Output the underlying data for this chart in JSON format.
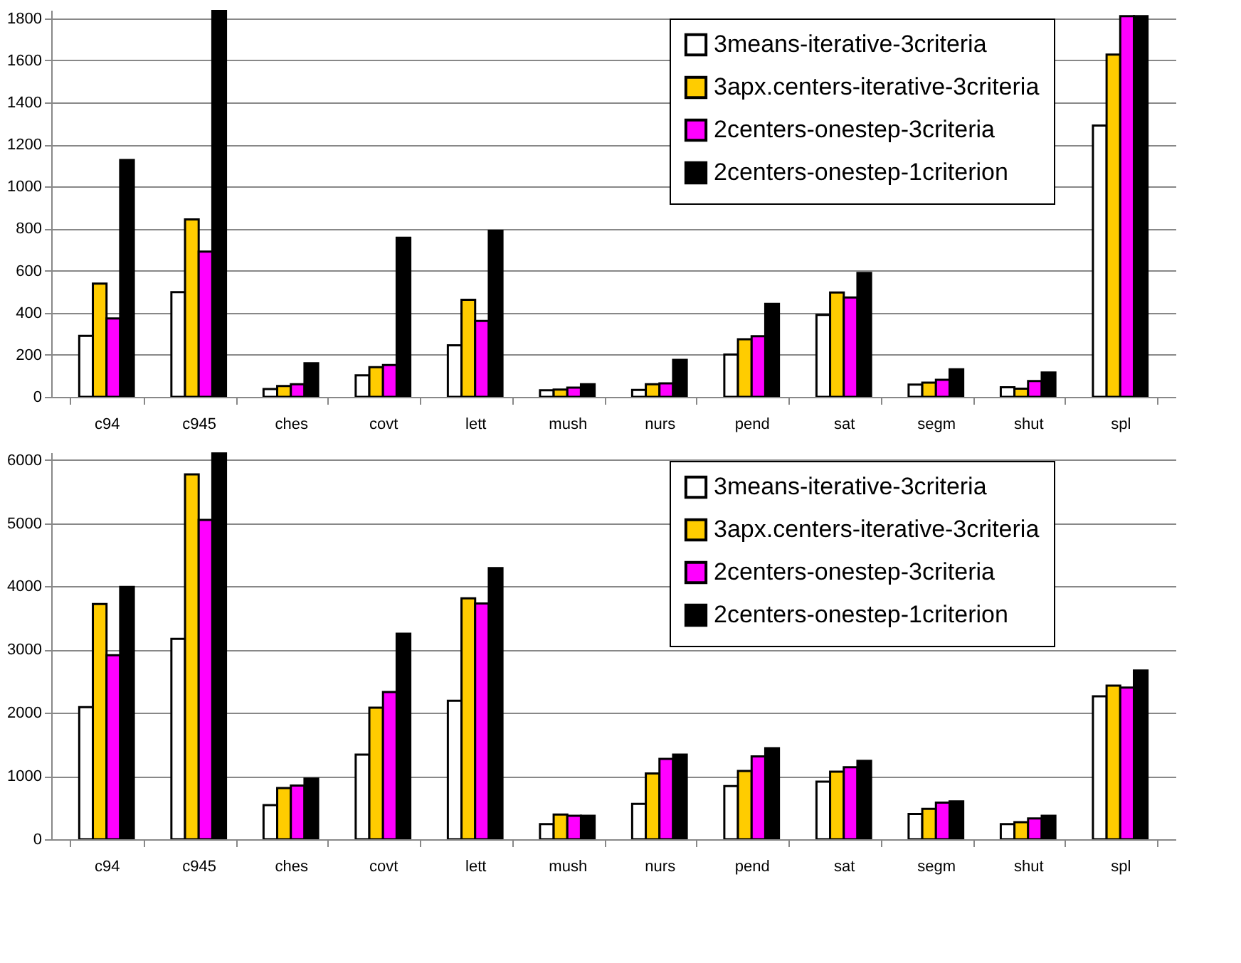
{
  "chart_data": [
    {
      "type": "bar",
      "categories": [
        "c94",
        "c945",
        "ches",
        "covt",
        "lett",
        "mush",
        "nurs",
        "pend",
        "sat",
        "segm",
        "shut",
        "spl"
      ],
      "ylim": [
        0,
        1840
      ],
      "yticks": [
        0,
        200,
        400,
        600,
        800,
        1000,
        1200,
        1400,
        1600,
        1800
      ],
      "grid": "y",
      "legend": "top right",
      "series": [
        {
          "name": "3means-iterative-3criteria",
          "color": "#ffffff",
          "values": [
            290,
            498,
            37,
            102,
            245,
            31,
            33,
            201,
            390,
            58,
            46,
            1290
          ]
        },
        {
          "name": "3apx.centers-iterative-3criteria",
          "color": "#ffcc00",
          "values": [
            539,
            844,
            52,
            141,
            462,
            35,
            60,
            274,
            496,
            68,
            39,
            1628
          ]
        },
        {
          "name": "2centers-onestep-3criteria",
          "color": "#ff00ff",
          "values": [
            373,
            691,
            60,
            151,
            361,
            44,
            64,
            288,
            473,
            81,
            75,
            1810
          ]
        },
        {
          "name": "2centers-onestep-1criterion",
          "color": "#000000",
          "values": [
            1126,
            1835,
            160,
            757,
            790,
            60,
            176,
            442,
            589,
            131,
            116,
            1810
          ]
        }
      ]
    },
    {
      "type": "bar",
      "categories": [
        "c94",
        "c945",
        "ches",
        "covt",
        "lett",
        "mush",
        "nurs",
        "pend",
        "sat",
        "segm",
        "shut",
        "spl"
      ],
      "ylim": [
        0,
        6120
      ],
      "yticks": [
        0,
        1000,
        2000,
        3000,
        4000,
        5000,
        6000
      ],
      "grid": "y",
      "legend": "top right",
      "series": [
        {
          "name": "3means-iterative-3criteria",
          "color": "#ffffff",
          "values": [
            2090,
            3170,
            540,
            1340,
            2190,
            240,
            560,
            840,
            910,
            400,
            240,
            2260
          ]
        },
        {
          "name": "3apx.centers-iterative-3criteria",
          "color": "#ffcc00",
          "values": [
            3720,
            5770,
            810,
            2080,
            3810,
            390,
            1040,
            1080,
            1070,
            480,
            270,
            2430
          ]
        },
        {
          "name": "2centers-onestep-3criteria",
          "color": "#ff00ff",
          "values": [
            2910,
            5050,
            850,
            2330,
            3730,
            370,
            1270,
            1310,
            1140,
            580,
            330,
            2400
          ]
        },
        {
          "name": "2centers-onestep-1criterion",
          "color": "#000000",
          "values": [
            3990,
            6110,
            960,
            3250,
            4290,
            370,
            1340,
            1440,
            1240,
            600,
            370,
            2670
          ]
        }
      ]
    }
  ]
}
